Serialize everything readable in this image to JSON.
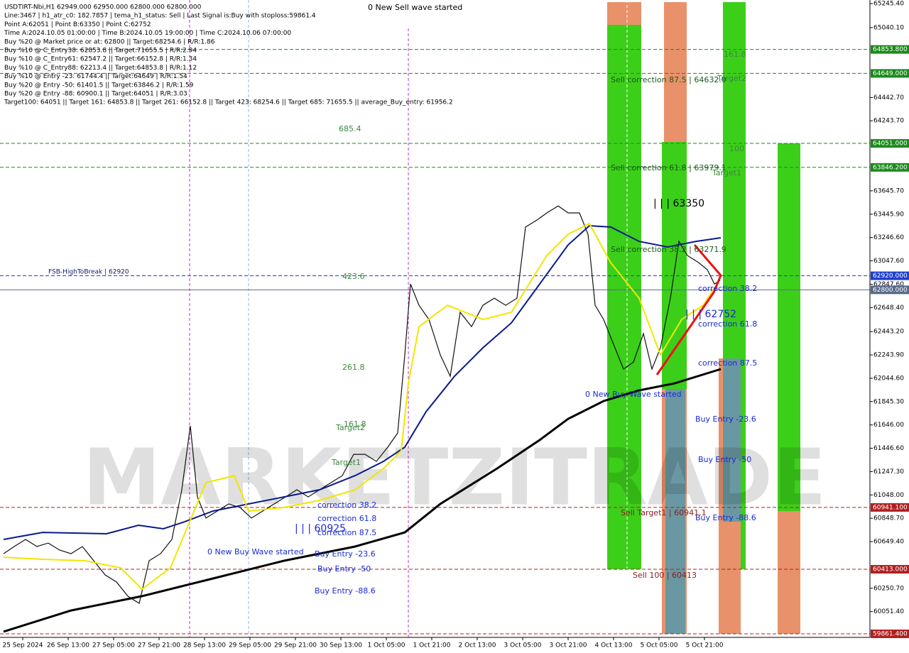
{
  "chart_data": {
    "type": "line",
    "header": [
      "USDTIRT-Nbi,H1  62949.000 62950.000 62800.000 62800.000",
      "Line:3467 | h1_atr_c0: 182.7857 | tema_h1_status: Sell | Last Signal is:Buy with stoploss:59861.4",
      "Point A:62051 | Point B:63350 | Point C:62752",
      "Time A:2024.10.05 01:00:00 | Time B:2024.10.05 19:00:00 | Time C:2024.10.06 07:00:00",
      "Buy %20 @ Market price or at: 62800 || Target:68254.6 | R/R:1.86",
      "Buy %10 @ C_Entry38: 62853.8 || Target:71655.5 | R/R:2.94",
      "Buy %10 @ C_Entry61: 62547.2 || Target:66152.8 | R/R:1.34",
      "Buy %10 @ C_Entry88: 62213.4 || Target:64853.8 | R/R:1.12",
      "Buy %10 @ Entry -23: 61744.4 || Target:64649 | R/R:1.54",
      "Buy %20 @ Entry -50: 61401.5 || Target:63846.2 | R/R:1.59",
      "Buy %20 @ Entry -88: 60900.1 || Target:64051 | R/R:3.03",
      "Target100: 64051 || Target 161: 64853.8 || Target 261: 66152.8 || Target 423: 68254.6 || Target 685: 71655.5 || average_Buy_entry: 61956.2"
    ],
    "watermark": "MARKETZITRADE",
    "xlim": [
      0,
      306.25
    ],
    "xticks": [
      {
        "value": 8,
        "label": "25 Sep 2024"
      },
      {
        "value": 24,
        "label": "26 Sep 13:00"
      },
      {
        "value": 40,
        "label": "27 Sep 05:00"
      },
      {
        "value": 56,
        "label": "27 Sep 21:00"
      },
      {
        "value": 72,
        "label": "28 Sep 13:00"
      },
      {
        "value": 88,
        "label": "29 Sep 05:00"
      },
      {
        "value": 104,
        "label": "29 Sep 21:00"
      },
      {
        "value": 120,
        "label": "30 Sep 13:00"
      },
      {
        "value": 136,
        "label": "1 Oct 05:00"
      },
      {
        "value": 152,
        "label": "1 Oct 21:00"
      },
      {
        "value": 168,
        "label": "2 Oct 13:00"
      },
      {
        "value": 184,
        "label": "3 Oct 05:00"
      },
      {
        "value": 200,
        "label": "3 Oct 21:00"
      },
      {
        "value": 216,
        "label": "4 Oct 13:00"
      },
      {
        "value": 232,
        "label": "5 Oct 05:00"
      },
      {
        "value": 248,
        "label": "5 Oct 21:00"
      }
    ],
    "ylim": [
      59831,
      65276
    ],
    "yticks": [
      {
        "value": 65245.4,
        "label": "65245.40"
      },
      {
        "value": 65040.1,
        "label": "65040.10"
      },
      {
        "value": 64442.7,
        "label": "64442.70"
      },
      {
        "value": 64243.7,
        "label": "64243.70"
      },
      {
        "value": 63645.7,
        "label": "63645.70"
      },
      {
        "value": 63445.9,
        "label": "63445.90"
      },
      {
        "value": 63246.6,
        "label": "63246.60"
      },
      {
        "value": 63047.6,
        "label": "63047.60"
      },
      {
        "value": 62847.6,
        "label": "62847.60"
      },
      {
        "value": 62648.4,
        "label": "62648.40"
      },
      {
        "value": 62443.2,
        "label": "62443.20"
      },
      {
        "value": 62243.9,
        "label": "62243.90"
      },
      {
        "value": 62044.6,
        "label": "62044.60"
      },
      {
        "value": 61845.3,
        "label": "61845.30"
      },
      {
        "value": 61646,
        "label": "61646.00"
      },
      {
        "value": 61446.6,
        "label": "61446.60"
      },
      {
        "value": 61247.3,
        "label": "61247.30"
      },
      {
        "value": 61048,
        "label": "61048.00"
      },
      {
        "value": 60848.7,
        "label": "60848.70"
      },
      {
        "value": 60649.4,
        "label": "60649.40"
      },
      {
        "value": 60250.7,
        "label": "60250.70"
      },
      {
        "value": 60051.4,
        "label": "60051.40"
      }
    ],
    "levels": [
      {
        "value": 64853.8,
        "label": "64853.800",
        "color": "#1a8a1a"
      },
      {
        "value": 64649,
        "label": "64649.000",
        "color": "#1a8a1a"
      },
      {
        "value": 64051,
        "label": "64051.000",
        "color": "#1a8a1a"
      },
      {
        "value": 63846.2,
        "label": "63846.200",
        "color": "#1a8a1a"
      },
      {
        "value": 62920,
        "label": "62920.000",
        "color": "#1f3fcf"
      },
      {
        "value": 62800,
        "label": "62800.000",
        "color": "#5a6a8a"
      },
      {
        "value": 60941.1,
        "label": "60941.100",
        "color": "#b02020"
      },
      {
        "value": 60413,
        "label": "60413.000",
        "color": "#b02020"
      },
      {
        "value": 59861.4,
        "label": "59861.400",
        "color": "#b02020"
      }
    ],
    "series": [
      {
        "color": "#111111",
        "x": [
          1.25,
          5,
          9,
          13,
          17,
          21,
          25,
          29,
          33,
          37,
          41,
          45,
          49,
          52.5,
          56.5,
          60.5,
          64,
          67,
          69.5,
          72.5,
          76.5,
          80.5,
          84.5,
          88.5,
          92.5,
          96.5,
          100.5,
          104.5,
          108.5,
          112.5,
          116.5,
          120.5,
          124.5,
          128.5,
          132.5,
          136.5,
          140,
          142.5,
          144.5,
          147.5,
          151,
          155,
          158.5,
          162,
          166,
          170,
          174,
          178,
          182,
          185,
          189,
          192.5,
          196.5,
          200,
          204,
          207,
          209.5,
          212.5,
          215.5,
          219.5,
          223,
          226.5,
          229.5,
          232.5,
          236,
          239,
          242,
          246,
          249,
          251.5,
          253.5
        ],
        "values": [
          60546,
          60607,
          60668,
          60607,
          60637,
          60577,
          60546,
          60607,
          60486,
          60365,
          60304,
          60183,
          60122,
          60486,
          60546,
          60668,
          61092,
          61638,
          61031,
          60850,
          60910,
          60971,
          60941,
          60850,
          60910,
          60971,
          61031,
          61092,
          61031,
          61092,
          61153,
          61213,
          61395,
          61395,
          61335,
          61456,
          61577,
          62244,
          62850,
          62668,
          62547,
          62244,
          62062,
          62608,
          62486,
          62668,
          62729,
          62668,
          62729,
          63336,
          63396,
          63457,
          63517,
          63457,
          63457,
          63275,
          62668,
          62547,
          62365,
          62123,
          62183,
          62426,
          62123,
          62305,
          62729,
          63214,
          63093,
          63032,
          62972,
          62850,
          62881
        ]
      },
      {
        "color": "#0a1a8c",
        "x": [
          1.25,
          15,
          37.5,
          48.75,
          57.5,
          65,
          75,
          87.5,
          100,
          112.5,
          125,
          135,
          142.5,
          150,
          160,
          170,
          180,
          190,
          200,
          207.5,
          215,
          225,
          235,
          245,
          253.75
        ],
        "values": [
          60668,
          60728,
          60716,
          60789,
          60759,
          60819,
          60910,
          60971,
          61031,
          61092,
          61213,
          61335,
          61456,
          61759,
          62062,
          62305,
          62517,
          62850,
          63184,
          63348,
          63336,
          63214,
          63166,
          63214,
          63245
        ]
      },
      {
        "color": "#000000",
        "x": [
          1.25,
          25,
          50,
          65,
          75,
          100,
          125,
          142.5,
          155,
          175,
          190,
          200,
          212.5,
          225,
          237.5,
          253.75
        ],
        "values": [
          59880,
          60061,
          60183,
          60274,
          60334,
          60486,
          60607,
          60728,
          60971,
          61274,
          61517,
          61698,
          61850,
          61941,
          62001,
          62123
        ]
      },
      {
        "color": "#f2e600",
        "x": [
          1.25,
          15,
          30,
          42.5,
          50,
          60,
          66.25,
          72.5,
          82.5,
          87.5,
          100,
          112.5,
          125,
          135,
          141.25,
          143.75,
          147.5,
          157.5,
          170,
          180,
          192.5,
          200,
          207.5,
          215,
          225,
          232.5,
          240,
          247.5,
          252.5
        ],
        "values": [
          60516,
          60498,
          60486,
          60425,
          60243,
          60425,
          60789,
          61153,
          61213,
          60910,
          60941,
          61001,
          61092,
          61274,
          61426,
          62001,
          62486,
          62668,
          62547,
          62608,
          63093,
          63275,
          63366,
          63032,
          62729,
          62244,
          62547,
          62668,
          62850
        ]
      }
    ],
    "annotations": [
      "0 New Sell wave started",
      "685.4",
      "423.6",
      "261.8",
      "161.8",
      "Target2",
      "Target1",
      "correction 38.2",
      "correction 61.8",
      "correction 87.5",
      "| | | 60925",
      "0 New Buy Wave started",
      "Buy Entry -23.6",
      "Buy Entry -50",
      "Buy Entry -88.6",
      "FSB-HighToBreak | 62920",
      "Sell correction 87.5 | 64632.9",
      "Sell correction 61.8 | 63979.1",
      "Sell correction 38.2 | 63271.9",
      "161.8",
      "Target2",
      "100",
      "Target1",
      "| | | 63350",
      "correction 38.2",
      "| | | 62752",
      "correction 61.8",
      "correction 87.5",
      "0 New Buy Wave started",
      "Buy Entry -23.6",
      "Buy Entry -50",
      "Buy Entry -88.6",
      "Sell Target1 | 60941.1",
      "Sell 100 | 60413"
    ]
  }
}
